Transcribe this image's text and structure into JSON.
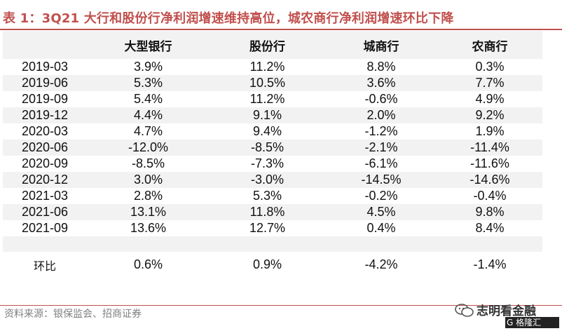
{
  "title": "表 1：3Q21 大行和股份行净利润增速维持高位，城农商行净利润增速环比下降",
  "columns": [
    "",
    "大型银行",
    "股份行",
    "城商行",
    "农商行"
  ],
  "rows": [
    {
      "label": "2019-03",
      "values": [
        "3.9%",
        "11.2%",
        "8.8%",
        "0.3%"
      ]
    },
    {
      "label": "2019-06",
      "values": [
        "5.3%",
        "10.5%",
        "3.6%",
        "7.7%"
      ]
    },
    {
      "label": "2019-09",
      "values": [
        "5.4%",
        "11.2%",
        "-0.6%",
        "4.9%"
      ]
    },
    {
      "label": "2019-12",
      "values": [
        "4.4%",
        "9.1%",
        "2.0%",
        "9.2%"
      ]
    },
    {
      "label": "2020-03",
      "values": [
        "4.7%",
        "9.4%",
        "-1.2%",
        "1.9%"
      ]
    },
    {
      "label": "2020-06",
      "values": [
        "-12.0%",
        "-8.5%",
        "-2.1%",
        "-11.4%"
      ]
    },
    {
      "label": "2020-09",
      "values": [
        "-8.5%",
        "-7.3%",
        "-6.1%",
        "-11.6%"
      ]
    },
    {
      "label": "2020-12",
      "values": [
        "3.0%",
        "-3.0%",
        "-14.5%",
        "-14.6%"
      ]
    },
    {
      "label": "2021-03",
      "values": [
        "2.8%",
        "5.3%",
        "-0.2%",
        "-0.4%"
      ]
    },
    {
      "label": "2021-06",
      "values": [
        "13.1%",
        "11.8%",
        "4.5%",
        "9.8%"
      ]
    },
    {
      "label": "2021-09",
      "values": [
        "13.6%",
        "12.7%",
        "0.4%",
        "8.4%"
      ]
    }
  ],
  "qoq": {
    "label": "环比",
    "values": [
      "0.6%",
      "0.9%",
      "-4.2%",
      "-1.4%"
    ]
  },
  "source": "资料来源：银保监会、招商证券",
  "watermark": {
    "name": "志明看金融",
    "logo_text": "G 格隆汇"
  },
  "colors": {
    "title": "#c0504d",
    "shade": "#f2f2f2"
  }
}
